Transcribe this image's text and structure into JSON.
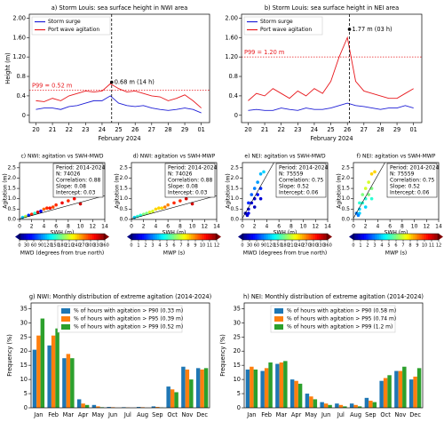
{
  "chart_data": [
    {
      "type": "line",
      "title": "a) Storm Louis: sea surface height in NWI area",
      "xlabel": "February 2024",
      "ylabel": "Height (m)",
      "x": [
        20,
        20.5,
        21,
        21.5,
        22,
        22.5,
        23,
        23.5,
        24,
        24.5,
        25,
        25.5,
        26,
        26.5,
        27,
        27.5,
        28,
        28.5,
        29,
        29.5,
        30
      ],
      "xlim": [
        19.6,
        30.5
      ],
      "xticks": [
        20,
        21,
        22,
        23,
        24,
        25,
        26,
        27,
        28,
        29,
        {
          "value": 30,
          "label": "01"
        }
      ],
      "ylim": [
        -0.15,
        2.08
      ],
      "yticks": [
        0,
        0.4,
        0.8,
        {
          "value": 1.2,
          "label": "1.20"
        },
        {
          "value": 1.6,
          "label": "1.60"
        },
        {
          "value": 2,
          "label": "2.00"
        }
      ],
      "series": [
        {
          "name": "Storm surge",
          "color": "#1f1fd6",
          "values": [
            0.12,
            0.15,
            0.15,
            0.12,
            0.18,
            0.2,
            0.25,
            0.3,
            0.3,
            0.4,
            0.25,
            0.2,
            0.18,
            0.2,
            0.15,
            0.12,
            0.1,
            0.12,
            0.15,
            0.12,
            0.05
          ]
        },
        {
          "name": "Port wave agitation",
          "color": "#e8191e",
          "values": [
            0.3,
            0.28,
            0.35,
            0.3,
            0.4,
            0.45,
            0.5,
            0.48,
            0.5,
            0.65,
            0.55,
            0.48,
            0.5,
            0.45,
            0.4,
            0.38,
            0.3,
            0.35,
            0.42,
            0.3,
            0.15
          ]
        }
      ],
      "p99": {
        "value": 0.52,
        "label": "P99 = 0.52 m"
      },
      "peak": {
        "x": 24.58,
        "y": 0.68,
        "label": "0.68 m (14 h)"
      },
      "legend": "upper left"
    },
    {
      "type": "line",
      "title": "b) Storm Louis: sea surface height in NEI area",
      "xlabel": "February 2024",
      "ylabel": "",
      "x": [
        20,
        20.5,
        21,
        21.5,
        22,
        22.5,
        23,
        23.5,
        24,
        24.5,
        25,
        25.5,
        26,
        26.5,
        27,
        27.5,
        28,
        28.5,
        29,
        29.5,
        30
      ],
      "xlim": [
        19.6,
        30.5
      ],
      "xticks": [
        20,
        21,
        22,
        23,
        24,
        25,
        26,
        27,
        28,
        29,
        {
          "value": 30,
          "label": "01"
        }
      ],
      "ylim": [
        -0.15,
        2.08
      ],
      "yticks": [
        0,
        0.4,
        0.8,
        {
          "value": 1.2,
          "label": "1.20"
        },
        {
          "value": 1.6,
          "label": "1.60"
        },
        {
          "value": 2,
          "label": "2.00"
        }
      ],
      "series": [
        {
          "name": "Storm surge",
          "color": "#1f1fd6",
          "values": [
            0.1,
            0.12,
            0.1,
            0.1,
            0.15,
            0.12,
            0.1,
            0.15,
            0.12,
            0.12,
            0.15,
            0.2,
            0.25,
            0.2,
            0.18,
            0.15,
            0.12,
            0.15,
            0.15,
            0.2,
            0.15
          ]
        },
        {
          "name": "Port wave agitation",
          "color": "#e8191e",
          "values": [
            0.3,
            0.45,
            0.4,
            0.55,
            0.45,
            0.35,
            0.5,
            0.4,
            0.55,
            0.45,
            0.7,
            1.2,
            1.6,
            0.7,
            0.5,
            0.45,
            0.4,
            0.35,
            0.35,
            0.45,
            0.55
          ]
        }
      ],
      "p99": {
        "value": 1.2,
        "label": "P99 = 1.20 m"
      },
      "peak": {
        "x": 26.125,
        "y": 1.77,
        "label": "1.77 m (03 h)"
      },
      "legend": "upper left"
    },
    {
      "type": "scatter",
      "title": "c) NWI: agitation vs SWH-MWD",
      "xlabel": "SWH (m)",
      "ylabel": "Agitation (m)",
      "xlim": [
        0,
        14
      ],
      "xticks": [
        0,
        2,
        4,
        6,
        8,
        10,
        12,
        14
      ],
      "ylim": [
        0,
        2.75
      ],
      "yticks": [
        {
          "value": 0,
          "label": "0.0"
        },
        0.5,
        {
          "value": 1,
          "label": "1.0"
        },
        1.5,
        {
          "value": 2,
          "label": "2.0"
        },
        2.5
      ],
      "x": [
        0.5,
        1,
        1.5,
        2,
        2.5,
        3,
        3.5,
        4,
        4.5,
        5,
        5.5,
        6,
        7,
        8,
        9,
        10
      ],
      "y": [
        0.1,
        0.15,
        0.2,
        0.25,
        0.3,
        0.35,
        0.4,
        0.5,
        0.55,
        0.55,
        0.6,
        0.7,
        0.8,
        0.9,
        1.0,
        0.75
      ],
      "c": [
        120,
        200,
        60,
        300,
        150,
        330,
        40,
        280,
        300,
        310,
        290,
        300,
        320,
        300,
        310,
        330
      ],
      "stats": [
        "Period: 2014-2024",
        "N: 74026",
        "Correlation: 0.88",
        "Slope: 0.08",
        "Intercept: 0.03"
      ],
      "fit": {
        "slope": 0.08,
        "intercept": 0.03
      },
      "cmap": "jet",
      "colorbar": {
        "label": "MWD (degrees from true north)",
        "lim": [
          0,
          360
        ],
        "ticks": [
          0,
          30,
          60,
          90,
          120,
          150,
          180,
          210,
          240,
          270,
          300,
          330,
          360
        ]
      }
    },
    {
      "type": "scatter",
      "title": "d) NWI: agitation vs SWH-MWP",
      "xlabel": "SWH (m)",
      "ylabel": "Agitation (m)",
      "xlim": [
        0,
        14
      ],
      "xticks": [
        0,
        2,
        4,
        6,
        8,
        10,
        12,
        14
      ],
      "ylim": [
        0,
        2.75
      ],
      "yticks": [
        {
          "value": 0,
          "label": "0.0"
        },
        0.5,
        {
          "value": 1,
          "label": "1.0"
        },
        1.5,
        {
          "value": 2,
          "label": "2.0"
        },
        2.5
      ],
      "x": [
        0.5,
        1,
        1.5,
        2,
        2.5,
        3,
        3.5,
        4,
        4.5,
        5,
        5.5,
        6,
        7,
        8,
        9,
        10
      ],
      "y": [
        0.1,
        0.15,
        0.2,
        0.25,
        0.3,
        0.35,
        0.4,
        0.5,
        0.55,
        0.55,
        0.6,
        0.7,
        0.8,
        0.9,
        1.0,
        0.75
      ],
      "c": [
        4,
        5,
        5,
        6,
        6,
        7,
        7,
        8,
        8,
        8,
        9,
        9,
        10,
        10,
        11,
        11
      ],
      "stats": [
        "Period: 2014-2024",
        "N: 74026",
        "Correlation: 0.88",
        "Slope: 0.08",
        "Intercept: 0.03"
      ],
      "fit": {
        "slope": 0.08,
        "intercept": 0.03
      },
      "cmap": "jet",
      "colorbar": {
        "label": "MWP (s)",
        "lim": [
          0,
          12
        ],
        "ticks": [
          0,
          1,
          2,
          3,
          4,
          5,
          6,
          7,
          8,
          9,
          10,
          11,
          12
        ]
      }
    },
    {
      "type": "scatter",
      "title": "e) NEI: agitation vs SWH-MWD",
      "xlabel": "SWH (m)",
      "ylabel": "Agitation (m)",
      "xlim": [
        0,
        14
      ],
      "xticks": [
        0,
        2,
        4,
        6,
        8,
        10,
        12,
        14
      ],
      "ylim": [
        0,
        2.75
      ],
      "yticks": [
        {
          "value": 0,
          "label": "0.0"
        },
        0.5,
        {
          "value": 1,
          "label": "1.0"
        },
        1.5,
        {
          "value": 2,
          "label": "2.0"
        },
        2.5
      ],
      "x": [
        0.5,
        1,
        1,
        1.5,
        1.5,
        2,
        2,
        2.5,
        2.5,
        3,
        3,
        3.5,
        1,
        2,
        3,
        0.8
      ],
      "y": [
        0.3,
        0.5,
        0.8,
        0.8,
        1.2,
        1.0,
        1.5,
        1.2,
        1.8,
        1.5,
        2.2,
        2.3,
        0.3,
        0.6,
        1.0,
        0.2
      ],
      "c": [
        20,
        30,
        60,
        40,
        80,
        30,
        90,
        50,
        100,
        60,
        110,
        120,
        40,
        20,
        30,
        30
      ],
      "stats": [
        "Period: 2014-2024",
        "N: 75559",
        "Correlation: 0.75",
        "Slope: 0.52",
        "Intercept: 0.06"
      ],
      "fit": {
        "slope": 0.52,
        "intercept": 0.06
      },
      "cmap": "jet",
      "colorbar": {
        "label": "MWD (degrees from true north)",
        "lim": [
          0,
          360
        ],
        "ticks": [
          0,
          30,
          60,
          90,
          120,
          150,
          180,
          210,
          240,
          270,
          300,
          330,
          360
        ]
      }
    },
    {
      "type": "scatter",
      "title": "f) NEI: agitation vs SWH-MWP",
      "xlabel": "SWH (m)",
      "ylabel": "Agitation (m)",
      "xlim": [
        0,
        14
      ],
      "xticks": [
        0,
        2,
        4,
        6,
        8,
        10,
        12,
        14
      ],
      "ylim": [
        0,
        2.75
      ],
      "yticks": [
        {
          "value": 0,
          "label": "0.0"
        },
        0.5,
        {
          "value": 1,
          "label": "1.0"
        },
        1.5,
        {
          "value": 2,
          "label": "2.0"
        },
        2.5
      ],
      "x": [
        0.5,
        1,
        1,
        1.5,
        1.5,
        2,
        2,
        2.5,
        2.5,
        3,
        3,
        3.5,
        1,
        2,
        3,
        0.8
      ],
      "y": [
        0.3,
        0.5,
        0.8,
        0.8,
        1.2,
        1.0,
        1.5,
        1.2,
        1.8,
        1.5,
        2.2,
        2.3,
        0.3,
        0.6,
        1.0,
        0.2
      ],
      "c": [
        3,
        4,
        5,
        5,
        6,
        5,
        7,
        6,
        7,
        6,
        8,
        8,
        4,
        4,
        5,
        3
      ],
      "stats": [
        "Period: 2014-2024",
        "N: 75559",
        "Correlation: 0.75",
        "Slope: 0.52",
        "Intercept: 0.06"
      ],
      "fit": {
        "slope": 0.52,
        "intercept": 0.06
      },
      "cmap": "jet",
      "colorbar": {
        "label": "MWP (s)",
        "lim": [
          0,
          12
        ],
        "ticks": [
          0,
          1,
          2,
          3,
          4,
          5,
          6,
          7,
          8,
          9,
          10,
          11,
          12
        ]
      }
    },
    {
      "type": "bar",
      "title": "g) NWI: Monthly distribution of extreme agitation (2014-2024)",
      "ylabel": "Frequency (%)",
      "categories": [
        "Jan",
        "Feb",
        "Mar",
        "Apr",
        "May",
        "Jun",
        "Jul",
        "Aug",
        "Sep",
        "Oct",
        "Nov",
        "Dec"
      ],
      "ylim": [
        0,
        37
      ],
      "yticks": [
        0,
        5,
        10,
        15,
        20,
        25,
        30,
        35
      ],
      "series": [
        {
          "name": "% of hours with agitation > P90 (0.33 m)",
          "color": "#1f77b4",
          "values": [
            20.5,
            22,
            17.5,
            3,
            1,
            0.3,
            0.2,
            0.3,
            0.5,
            7.5,
            14.5,
            14
          ]
        },
        {
          "name": "% of hours with agitation > P95 (0.39 m)",
          "color": "#ff7f0e",
          "values": [
            25.5,
            25.5,
            19,
            1.5,
            0.5,
            0.2,
            0.1,
            0.2,
            0.3,
            6.5,
            13.5,
            13.5
          ]
        },
        {
          "name": "% of hours with agitation > P99 (0.52 m)",
          "color": "#2ca02c",
          "values": [
            31.5,
            28,
            17.5,
            1,
            0.2,
            0,
            0,
            0,
            0.1,
            5.5,
            10,
            14
          ]
        }
      ],
      "legend": "upper center"
    },
    {
      "type": "bar",
      "title": "h) NEI: Monthly distribution of extreme agitation (2014-2024)",
      "ylabel": "Frequency (%)",
      "categories": [
        "Jan",
        "Feb",
        "Mar",
        "Apr",
        "May",
        "Jun",
        "Jul",
        "Aug",
        "Sep",
        "Oct",
        "Nov",
        "Dec"
      ],
      "ylim": [
        0,
        37
      ],
      "yticks": [
        0,
        5,
        10,
        15,
        20,
        25,
        30,
        35
      ],
      "series": [
        {
          "name": "% of hours with agitation > P90 (0.58 m)",
          "color": "#1f77b4",
          "values": [
            13.5,
            13,
            15.5,
            10,
            5,
            2,
            1.5,
            1.5,
            3.5,
            9.5,
            13,
            10
          ]
        },
        {
          "name": "% of hours with agitation > P95 (0.74 m)",
          "color": "#ff7f0e",
          "values": [
            14.5,
            14,
            16,
            9.5,
            4,
            1.5,
            1,
            1,
            2.5,
            10.5,
            13,
            11
          ]
        },
        {
          "name": "% of hours with agitation > P99 (1.2 m)",
          "color": "#2ca02c",
          "values": [
            13.5,
            16,
            16.5,
            8.5,
            3,
            1,
            0.5,
            0.5,
            2,
            11.5,
            14.5,
            14
          ]
        }
      ],
      "legend": "upper center"
    }
  ]
}
